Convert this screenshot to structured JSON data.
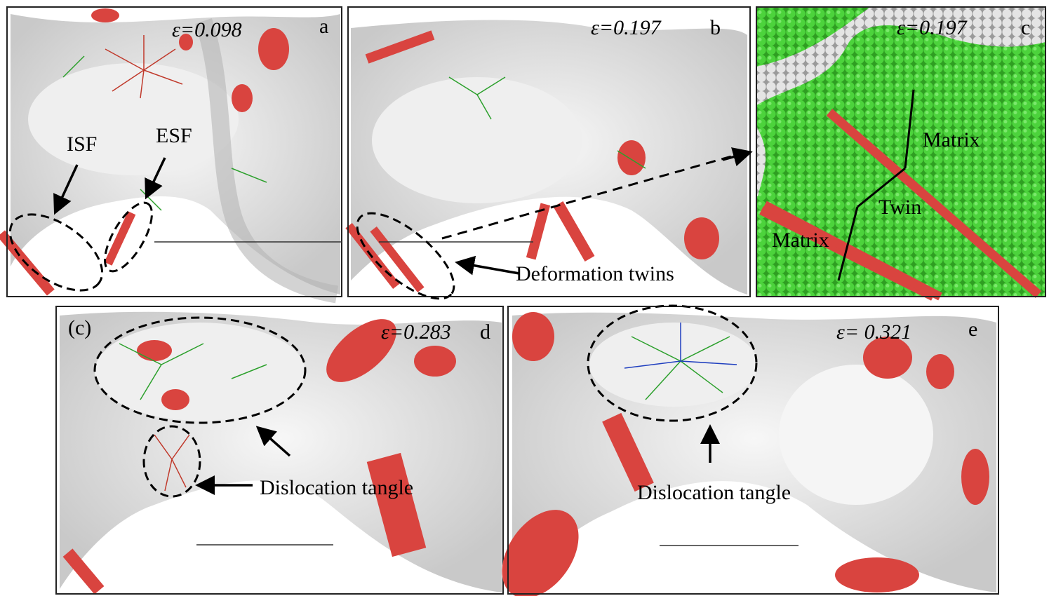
{
  "panels": [
    {
      "label": "a",
      "strain": "ε=0.098",
      "annotations": [
        "ISF",
        "ESF"
      ]
    },
    {
      "label": "b",
      "strain": "ε=0.197",
      "annotations": [
        "Deformation twins"
      ]
    },
    {
      "label": "c",
      "strain": "ε=0.197",
      "annotations": [
        "Matrix",
        "Twin",
        "Matrix"
      ]
    },
    {
      "label": "d",
      "strain": "ε=0.283",
      "annotations": [
        "(c)",
        "Dislocation tangle"
      ]
    },
    {
      "label": "e",
      "strain": "ε= 0.321",
      "annotations": [
        "Dislocation tangle"
      ]
    }
  ]
}
